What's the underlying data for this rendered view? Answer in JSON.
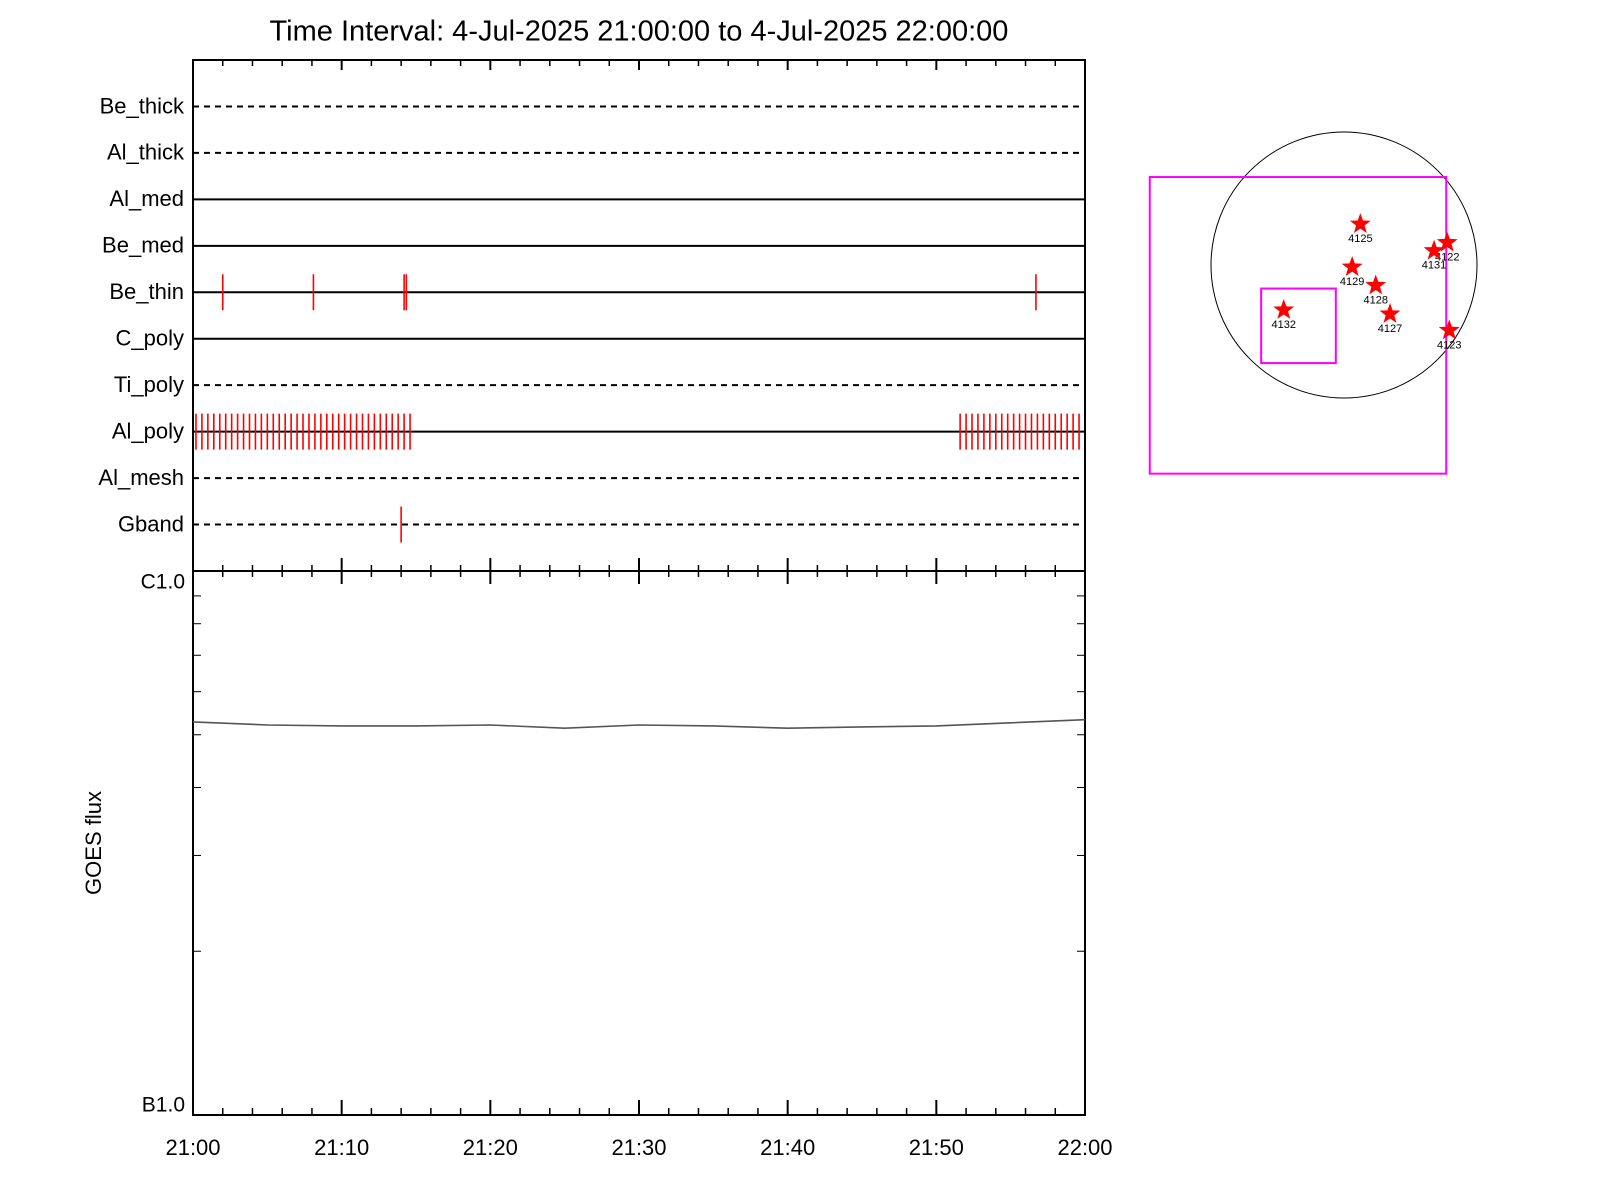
{
  "chart_data": [
    {
      "type": "timeline",
      "title": "Time Interval:  4-Jul-2025 21:00:00 to  4-Jul-2025 22:00:00",
      "xlim": [
        0,
        60
      ],
      "event_color": "#ff0000",
      "rows": [
        {
          "name": "Be_thick",
          "line": "dashed",
          "events": []
        },
        {
          "name": "Al_thick",
          "line": "dashed",
          "events": []
        },
        {
          "name": "Al_med",
          "line": "solid",
          "events": []
        },
        {
          "name": "Be_med",
          "line": "solid",
          "events": []
        },
        {
          "name": "Be_thin",
          "line": "solid",
          "events": [
            2.0,
            8.1,
            14.2,
            14.35,
            56.7
          ]
        },
        {
          "name": "C_poly",
          "line": "solid",
          "events": []
        },
        {
          "name": "Ti_poly",
          "line": "dashed",
          "events": []
        },
        {
          "name": "Al_poly",
          "line": "solid",
          "events": [
            0.2,
            0.6,
            1.0,
            1.4,
            1.8,
            2.2,
            2.6,
            3.0,
            3.4,
            3.8,
            4.2,
            4.6,
            5.0,
            5.4,
            5.8,
            6.2,
            6.6,
            7.0,
            7.4,
            7.8,
            8.2,
            8.6,
            9.0,
            9.4,
            9.8,
            10.2,
            10.6,
            11.0,
            11.4,
            11.8,
            12.2,
            12.6,
            13.0,
            13.4,
            13.8,
            14.2,
            14.6,
            51.6,
            52.0,
            52.4,
            52.8,
            53.2,
            53.6,
            54.0,
            54.4,
            54.8,
            55.2,
            55.6,
            56.0,
            56.4,
            56.8,
            57.2,
            57.6,
            58.0,
            58.4,
            58.8,
            59.2,
            59.6
          ]
        },
        {
          "name": "Al_mesh",
          "line": "dashed",
          "events": []
        },
        {
          "name": "Gband",
          "line": "dashed",
          "events": [
            14.0
          ]
        }
      ]
    },
    {
      "type": "line",
      "ylabel": "GOES flux",
      "x": [
        0,
        5,
        10,
        15,
        20,
        25,
        30,
        35,
        40,
        45,
        50,
        55,
        60
      ],
      "values": [
        5.28e-07,
        5.21e-07,
        5.19e-07,
        5.19e-07,
        5.21e-07,
        5.14e-07,
        5.21e-07,
        5.19e-07,
        5.14e-07,
        5.17e-07,
        5.19e-07,
        5.26e-07,
        5.33e-07
      ],
      "color": "#555555",
      "log_y": true,
      "ylim": [
        1e-07,
        1e-06
      ],
      "yticks": [
        {
          "value": 1e-06,
          "label": "C1.0"
        },
        {
          "value": 1e-07,
          "label": "B1.0"
        }
      ],
      "yminorticks": [
        2e-07,
        3e-07,
        4e-07,
        5e-07,
        6e-07,
        7e-07,
        8e-07,
        9e-07
      ],
      "xlim": [
        0,
        60
      ],
      "xticks": [
        {
          "value": 0,
          "label": "21:00"
        },
        {
          "value": 10,
          "label": "21:10"
        },
        {
          "value": 20,
          "label": "21:20"
        },
        {
          "value": 30,
          "label": "21:30"
        },
        {
          "value": 40,
          "label": "21:40"
        },
        {
          "value": 50,
          "label": "21:50"
        },
        {
          "value": 60,
          "label": "22:00"
        }
      ],
      "xminorticks": [
        2,
        4,
        6,
        8,
        12,
        14,
        16,
        18,
        22,
        24,
        26,
        28,
        32,
        34,
        36,
        38,
        42,
        44,
        46,
        48,
        52,
        54,
        56,
        58
      ]
    },
    {
      "type": "map",
      "disk_radius": 960,
      "box_color": "#ff00ff",
      "point_color": "#ff0000",
      "boxes": [
        {
          "x": [
            -1402,
            738
          ],
          "y": [
            -1506,
            635
          ]
        },
        {
          "x": [
            -598,
            -59
          ],
          "y": [
            -708,
            -170
          ]
        }
      ],
      "points": [
        {
          "name": "4125",
          "x": 118,
          "y": 295
        },
        {
          "name": "4122",
          "x": 745,
          "y": 162
        },
        {
          "name": "4131",
          "x": 650,
          "y": 103
        },
        {
          "name": "4129",
          "x": 59,
          "y": -15
        },
        {
          "name": "4128",
          "x": 229,
          "y": -148
        },
        {
          "name": "4132",
          "x": -435,
          "y": -325
        },
        {
          "name": "4127",
          "x": 332,
          "y": -354
        },
        {
          "name": "4123",
          "x": 760,
          "y": -472
        }
      ]
    }
  ]
}
